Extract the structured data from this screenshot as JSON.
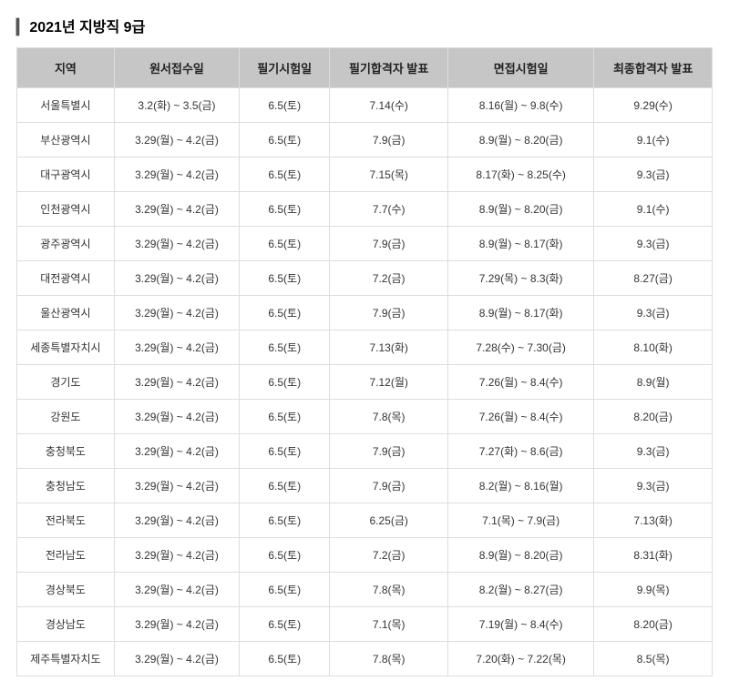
{
  "title": "2021년 지방직 9급",
  "table": {
    "columns": [
      "지역",
      "원서접수일",
      "필기시험일",
      "필기합격자 발표",
      "면접시험일",
      "최종합격자 발표"
    ],
    "header_bg": "#c6c6c6",
    "border_color": "#dddddd",
    "text_color": "#333333",
    "font_size_pt": 12,
    "header_font_size_pt": 13,
    "col_widths_pct": [
      14,
      18,
      13,
      17,
      21,
      17
    ],
    "rows": [
      [
        "서울특별시",
        "3.2(화) ~ 3.5(금)",
        "6.5(토)",
        "7.14(수)",
        "8.16(월) ~ 9.8(수)",
        "9.29(수)"
      ],
      [
        "부산광역시",
        "3.29(월) ~ 4.2(금)",
        "6.5(토)",
        "7.9(금)",
        "8.9(월) ~ 8.20(금)",
        "9.1(수)"
      ],
      [
        "대구광역시",
        "3.29(월) ~ 4.2(금)",
        "6.5(토)",
        "7.15(목)",
        "8.17(화) ~ 8.25(수)",
        "9.3(금)"
      ],
      [
        "인천광역시",
        "3.29(월) ~ 4.2(금)",
        "6.5(토)",
        "7.7(수)",
        "8.9(월) ~ 8.20(금)",
        "9.1(수)"
      ],
      [
        "광주광역시",
        "3.29(월) ~ 4.2(금)",
        "6.5(토)",
        "7.9(금)",
        "8.9(월) ~ 8.17(화)",
        "9.3(금)"
      ],
      [
        "대전광역시",
        "3.29(월) ~ 4.2(금)",
        "6.5(토)",
        "7.2(금)",
        "7.29(목) ~ 8.3(화)",
        "8.27(금)"
      ],
      [
        "울산광역시",
        "3.29(월) ~ 4.2(금)",
        "6.5(토)",
        "7.9(금)",
        "8.9(월) ~ 8.17(화)",
        "9.3(금)"
      ],
      [
        "세종특별자치시",
        "3.29(월) ~ 4.2(금)",
        "6.5(토)",
        "7.13(화)",
        "7.28(수) ~ 7.30(금)",
        "8.10(화)"
      ],
      [
        "경기도",
        "3.29(월) ~ 4.2(금)",
        "6.5(토)",
        "7.12(월)",
        "7.26(월) ~ 8.4(수)",
        "8.9(월)"
      ],
      [
        "강원도",
        "3.29(월) ~ 4.2(금)",
        "6.5(토)",
        "7.8(목)",
        "7.26(월) ~ 8.4(수)",
        "8.20(금)"
      ],
      [
        "충청북도",
        "3.29(월) ~ 4.2(금)",
        "6.5(토)",
        "7.9(금)",
        "7.27(화) ~ 8.6(금)",
        "9.3(금)"
      ],
      [
        "충청남도",
        "3.29(월) ~ 4.2(금)",
        "6.5(토)",
        "7.9(금)",
        "8.2(월) ~ 8.16(월)",
        "9.3(금)"
      ],
      [
        "전라북도",
        "3.29(월) ~ 4.2(금)",
        "6.5(토)",
        "6.25(금)",
        "7.1(목) ~ 7.9(금)",
        "7.13(화)"
      ],
      [
        "전라남도",
        "3.29(월) ~ 4.2(금)",
        "6.5(토)",
        "7.2(금)",
        "8.9(월) ~ 8.20(금)",
        "8.31(화)"
      ],
      [
        "경상북도",
        "3.29(월) ~ 4.2(금)",
        "6.5(토)",
        "7.8(목)",
        "8.2(월) ~ 8.27(금)",
        "9.9(목)"
      ],
      [
        "경상남도",
        "3.29(월) ~ 4.2(금)",
        "6.5(토)",
        "7.1(목)",
        "7.19(월) ~ 8.4(수)",
        "8.20(금)"
      ],
      [
        "제주특별자치도",
        "3.29(월) ~ 4.2(금)",
        "6.5(토)",
        "7.8(목)",
        "7.20(화) ~ 7.22(목)",
        "8.5(목)"
      ]
    ]
  }
}
